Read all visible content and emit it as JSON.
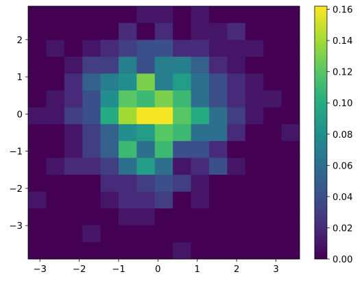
{
  "chart_data": {
    "type": "heatmap",
    "title": "",
    "xlabel": "",
    "ylabel": "",
    "xlim": [
      -3.3,
      3.6
    ],
    "ylim": [
      -3.9,
      2.9
    ],
    "x_edges": [
      -3.3,
      -2.84,
      -2.38,
      -1.92,
      -1.46,
      -1.0,
      -0.54,
      -0.08,
      0.38,
      0.84,
      1.3,
      1.76,
      2.22,
      2.68,
      3.14,
      3.6
    ],
    "y_edges": [
      2.9,
      2.447,
      1.993,
      1.54,
      1.087,
      0.633,
      0.18,
      -0.273,
      -0.727,
      -1.18,
      -1.633,
      -2.087,
      -2.54,
      -2.993,
      -3.447,
      -3.9
    ],
    "z": [
      [
        0,
        0,
        0,
        0,
        0,
        0,
        0.01,
        0.01,
        0,
        0.01,
        0,
        0,
        0,
        0,
        0
      ],
      [
        0,
        0,
        0,
        0,
        0,
        0.02,
        0,
        0.02,
        0,
        0.01,
        0.01,
        0.02,
        0,
        0,
        0
      ],
      [
        0,
        0.01,
        0,
        0.01,
        0.02,
        0.03,
        0.04,
        0.04,
        0.02,
        0.02,
        0.01,
        0.01,
        0.01,
        0,
        0
      ],
      [
        0,
        0,
        0.01,
        0.03,
        0.03,
        0.07,
        0.04,
        0.07,
        0.07,
        0.05,
        0.02,
        0.01,
        0,
        0,
        0
      ],
      [
        0,
        0,
        0.02,
        0.05,
        0.07,
        0.08,
        0.13,
        0.07,
        0.09,
        0.06,
        0.04,
        0.02,
        0.01,
        0,
        0
      ],
      [
        0,
        0.01,
        0.02,
        0.04,
        0.08,
        0.12,
        0.11,
        0.13,
        0.11,
        0.06,
        0.04,
        0.02,
        0.01,
        0.01,
        0
      ],
      [
        0.01,
        0.01,
        0.03,
        0.04,
        0.1,
        0.14,
        0.16,
        0.16,
        0.12,
        0.1,
        0.06,
        0.03,
        0.01,
        0,
        0
      ],
      [
        0,
        0,
        0.01,
        0.03,
        0.05,
        0.08,
        0.09,
        0.12,
        0.11,
        0.06,
        0.06,
        0.02,
        0,
        0,
        0.01
      ],
      [
        0,
        0,
        0.01,
        0.03,
        0.05,
        0.11,
        0.06,
        0.11,
        0.04,
        0.04,
        0.02,
        0,
        0,
        0,
        0
      ],
      [
        0,
        0.01,
        0.02,
        0.02,
        0.03,
        0.06,
        0.09,
        0.06,
        0.01,
        0.02,
        0.04,
        0.01,
        0,
        0,
        0
      ],
      [
        0,
        0,
        0,
        0,
        0.02,
        0.02,
        0.03,
        0.04,
        0.03,
        0.01,
        0,
        0,
        0,
        0,
        0
      ],
      [
        0.01,
        0,
        0,
        0,
        0.01,
        0.02,
        0.02,
        0.03,
        0,
        0.01,
        0,
        0,
        0,
        0,
        0
      ],
      [
        0,
        0,
        0,
        0,
        0,
        0.01,
        0.01,
        0,
        0,
        0,
        0,
        0,
        0,
        0,
        0
      ],
      [
        0,
        0,
        0,
        0.01,
        0,
        0,
        0,
        0,
        0,
        0,
        0,
        0,
        0,
        0,
        0
      ],
      [
        0,
        0,
        0,
        0,
        0,
        0,
        0,
        0,
        0.01,
        0,
        0,
        0,
        0,
        0,
        0
      ]
    ],
    "xticks": [
      -3,
      -2,
      -1,
      0,
      1,
      2,
      3
    ],
    "yticks": [
      -3,
      -2,
      -1,
      0,
      1,
      2
    ],
    "colorbar": {
      "colormap": "viridis",
      "vmin": 0.0,
      "vmax": 0.162,
      "ticks": [
        "0.00",
        "0.02",
        "0.04",
        "0.06",
        "0.08",
        "0.10",
        "0.12",
        "0.14",
        "0.16"
      ]
    },
    "grid": false,
    "legend": "none"
  }
}
